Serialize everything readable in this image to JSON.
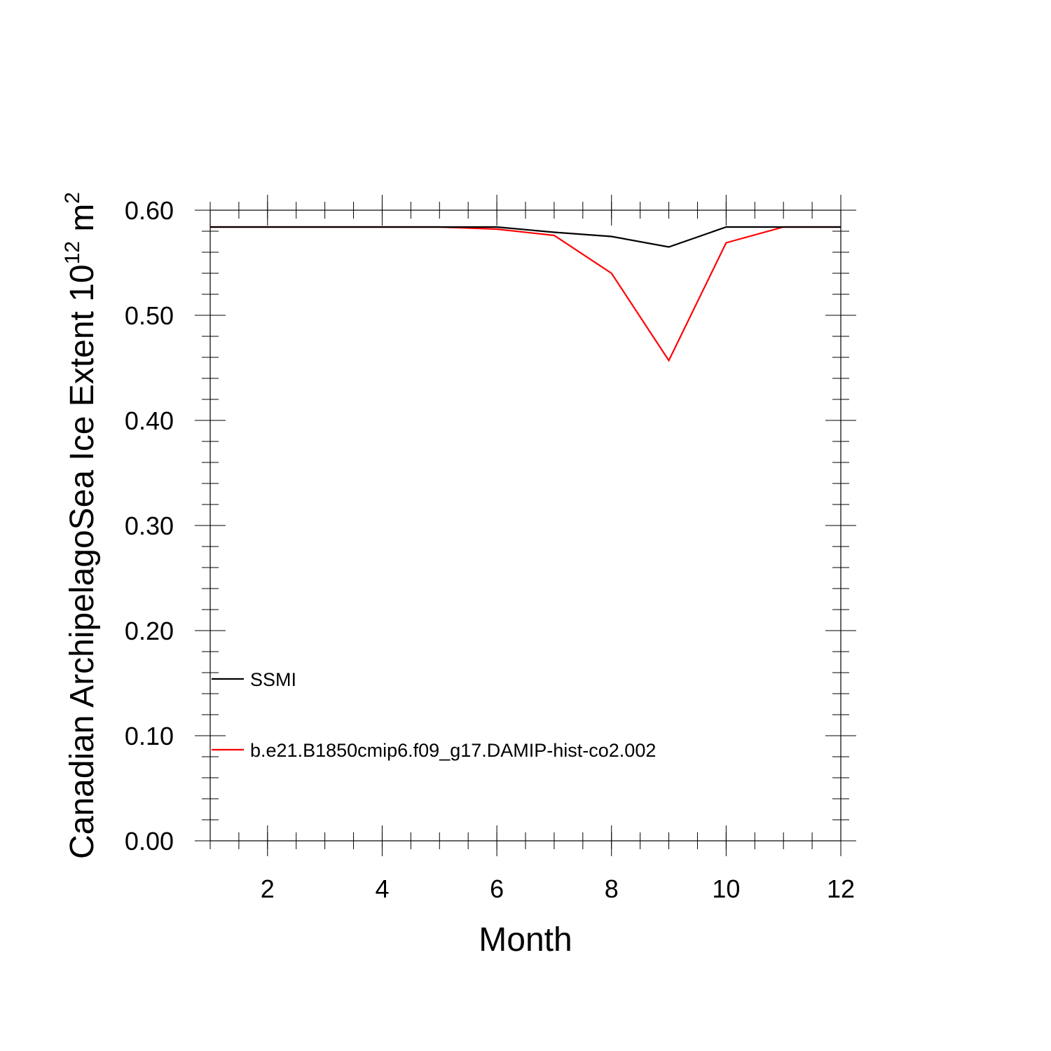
{
  "chart_data": {
    "type": "line",
    "xlabel": "Month",
    "ylabel": {
      "text": "Canadian ArchipelagoSea Ice Extent 10",
      "exponent": "12",
      "unit": " m",
      "unit_exponent": "2"
    },
    "xlim": [
      1,
      12
    ],
    "ylim": [
      0.0,
      0.6
    ],
    "xticks": [
      2,
      4,
      6,
      8,
      10,
      12
    ],
    "xtick_labels": [
      "2",
      "4",
      "6",
      "8",
      "10",
      "12"
    ],
    "yticks": [
      0.0,
      0.1,
      0.2,
      0.3,
      0.4,
      0.5,
      0.6
    ],
    "ytick_labels": [
      "0.00",
      "0.10",
      "0.20",
      "0.30",
      "0.40",
      "0.50",
      "0.60"
    ],
    "grid": false,
    "legend_position": "lower-left",
    "x": [
      1,
      2,
      3,
      4,
      5,
      6,
      7,
      8,
      9,
      10,
      11,
      12
    ],
    "series": [
      {
        "name": "SSMI",
        "color": "#000000",
        "values": [
          0.584,
          0.584,
          0.584,
          0.584,
          0.584,
          0.584,
          0.579,
          0.575,
          0.565,
          0.584,
          0.584,
          0.584
        ]
      },
      {
        "name": "b.e21.B1850cmip6.f09_g17.DAMIP-hist-co2.002",
        "color": "#ff0000",
        "values": [
          0.584,
          0.584,
          0.584,
          0.584,
          0.584,
          0.582,
          0.576,
          0.54,
          0.457,
          0.569,
          0.584,
          0.584
        ]
      }
    ]
  }
}
